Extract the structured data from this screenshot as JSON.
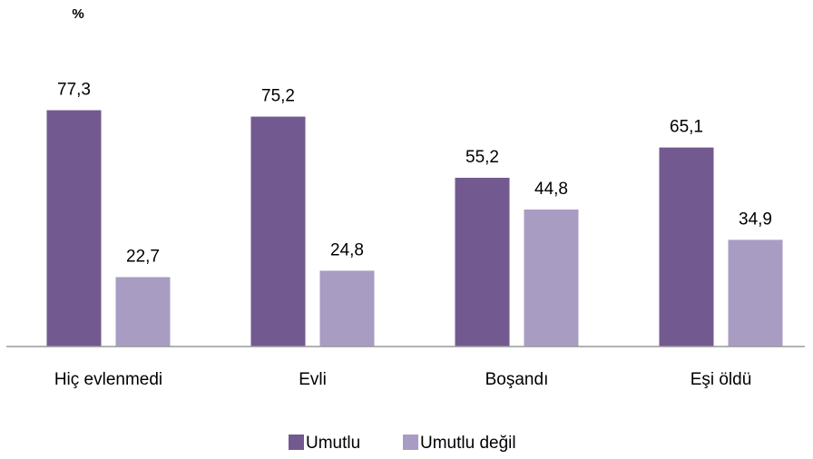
{
  "chart_data": {
    "type": "bar",
    "y_label": "%",
    "categories": [
      "Hiç evlenmedi",
      "Evli",
      "Boşandı",
      "Eşi öldü"
    ],
    "series": [
      {
        "name": "Umutlu",
        "color": "#725a90",
        "values": [
          77.3,
          75.2,
          55.2,
          65.1
        ],
        "value_labels": [
          "77,3",
          "75,2",
          "55,2",
          "65,1"
        ]
      },
      {
        "name": "Umutlu değil",
        "color": "#a99cc2",
        "values": [
          22.7,
          24.8,
          44.8,
          34.9
        ],
        "value_labels": [
          "22,7",
          "24,8",
          "44,8",
          "34,9"
        ]
      }
    ],
    "ylim": [
      0,
      100
    ],
    "grid": false,
    "legend": "bottom"
  }
}
